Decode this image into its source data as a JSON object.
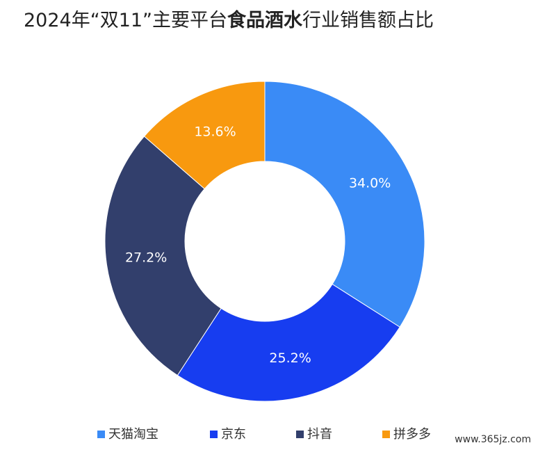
{
  "chart_data": {
    "type": "donut",
    "title": {
      "before": "2024年“双11”主要平台",
      "bold": "食品酒水",
      "after": "行业销售额占比"
    },
    "categories": [
      "天猫淘宝",
      "京东",
      "抖音",
      "拼多多"
    ],
    "values": [
      34.0,
      25.2,
      27.2,
      13.6
    ],
    "value_labels": [
      "34.0%",
      "25.2%",
      "27.2%",
      "13.6%"
    ],
    "colors": [
      "#3a8bf6",
      "#173df0",
      "#323f6c",
      "#f8990f"
    ],
    "legend": "bottom",
    "watermark": "www.365jz.com"
  }
}
